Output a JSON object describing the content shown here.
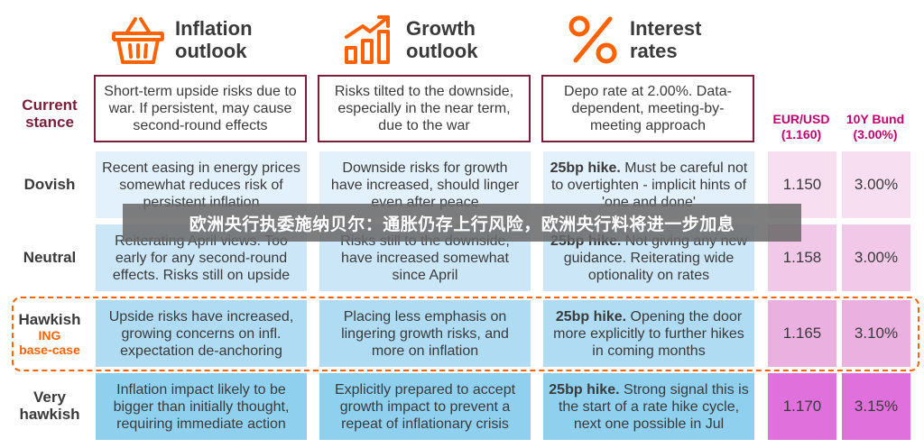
{
  "headers": {
    "inflation": "Inflation\noutlook",
    "growth": "Growth\noutlook",
    "rates": "Interest\nrates"
  },
  "row_labels": {
    "current": "Current stance",
    "dovish": "Dovish",
    "neutral": "Neutral",
    "hawkish": "Hawkish",
    "hawkish_ing": "ING",
    "hawkish_base": "base-case",
    "very_hawkish": "Very hawkish"
  },
  "market_headers": {
    "eurusd": "EUR/USD",
    "eurusd_value": "(1.160)",
    "bund": "10Y Bund",
    "bund_value": "(3.00%)"
  },
  "rows": {
    "current": {
      "inflation": "Short-term upside risks due to war. If persistent, may cause second-round effects",
      "growth": "Risks tilted to the downside, especially in the near term, due to the war",
      "rates": "Depo rate at 2.00%. Data-dependent, meeting-by-meeting approach"
    },
    "dovish": {
      "inflation": "Recent easing in energy prices somewhat reduces risk of persistent inflation",
      "growth": "Downside risks for growth have increased, should linger even after peace",
      "rates_bold": "25bp hike.",
      "rates": " Must be careful not to overtighten - implicit hints of 'one and done'",
      "eurusd": "1.150",
      "bund": "3.00%"
    },
    "neutral": {
      "inflation": "Reiterating April views. Too early for any second-round effects. Risks still on upside",
      "growth": "Risks still to the downside, have increased somewhat since April",
      "rates_bold": "25bp hike.",
      "rates": " Not giving any new guidance. Reiterating wide optionality on rates",
      "eurusd": "1.158",
      "bund": "3.00%"
    },
    "hawkish": {
      "inflation": "Upside risks have increased, growing concerns on infl. expectation de-anchoring",
      "growth": "Placing less emphasis on lingering growth risks, and more on inflation",
      "rates_bold": "25bp hike.",
      "rates": " Opening the door more explicitly to further hikes in coming months",
      "eurusd": "1.165",
      "bund": "3.10%"
    },
    "very_hawkish": {
      "inflation": "Inflation impact likely to be bigger than initially thought, requiring immediate action",
      "growth": "Explicitly prepared to accept growth impact to prevent a repeat of inflationary crisis",
      "rates_bold": "25bp hike.",
      "rates": " Strong signal this is the start of a rate hike cycle, next one possible in Jul",
      "eurusd": "1.170",
      "bund": "3.15%"
    }
  },
  "banner": "欧洲央行执委施纳贝尔：通胀仍存上行风险，欧洲央行料将进一步加息",
  "colors": {
    "maroon": "#7a1e3a",
    "ing_orange": "#ff6200",
    "magenta": "#c2006f",
    "pink_1": "#f7def0",
    "pink_2": "#f1c8e8",
    "pink_3": "#eab0e0",
    "pink_4": "#e070dc"
  }
}
